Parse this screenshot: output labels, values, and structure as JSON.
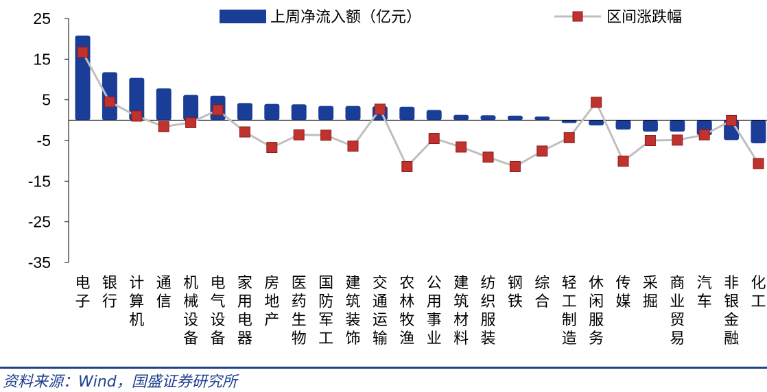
{
  "chart_data": {
    "type": "bar+line",
    "categories": [
      "电子",
      "银行",
      "计算机",
      "通信",
      "机械设备",
      "电气设备",
      "家用电器",
      "房地产",
      "医药生物",
      "国防军工",
      "建筑装饰",
      "交通运输",
      "农林牧渔",
      "公用事业",
      "建筑材料",
      "纺织服装",
      "钢铁",
      "综合",
      "轻工制造",
      "休闲服务",
      "传媒",
      "采掘",
      "商业贸易",
      "汽车",
      "非银金融",
      "化工"
    ],
    "series": [
      {
        "name": "上周净流入额（亿元）",
        "type": "bar",
        "color": "#1a3e97",
        "values": [
          20.8,
          11.8,
          10.4,
          7.8,
          6.2,
          6.0,
          4.2,
          4.0,
          3.9,
          3.5,
          3.5,
          3.4,
          3.3,
          2.5,
          1.3,
          1.2,
          1.1,
          0.9,
          -0.7,
          -1.3,
          -2.3,
          -2.8,
          -2.8,
          -3.7,
          -4.9,
          -5.7
        ]
      },
      {
        "name": "区间涨跌幅",
        "type": "line",
        "line_color": "#bfbfbf",
        "marker_color": "#c0322e",
        "values": [
          16.7,
          4.5,
          1.0,
          -1.6,
          -0.6,
          2.5,
          -2.9,
          -6.7,
          -3.6,
          -3.7,
          -6.4,
          2.7,
          -11.4,
          -4.5,
          -6.6,
          -9.1,
          -11.4,
          -7.6,
          -4.3,
          4.4,
          -10.1,
          -5.0,
          -4.9,
          -3.6,
          -0.1,
          -10.7
        ]
      }
    ],
    "ylim": [
      -35,
      25
    ],
    "yticks": [
      25,
      15,
      5,
      -5,
      -15,
      -25,
      -35
    ],
    "legend_position": "top",
    "grid": false
  },
  "source": "资料来源：Wind，国盛证券研究所"
}
